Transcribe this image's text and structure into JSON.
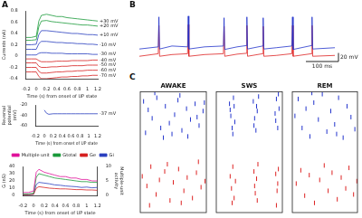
{
  "chart_data": [
    {
      "type": "line",
      "panel_label": "A",
      "xlabel": "Time (s) from onset of UP state",
      "ylabel": "Currents (nA)",
      "x": [
        -0.2,
        -0.1,
        0,
        0.05,
        0.1,
        0.2,
        0.3,
        0.4,
        0.5,
        0.6,
        0.7,
        0.8,
        0.9,
        1.0,
        1.1,
        1.2
      ],
      "xlim": [
        -0.2,
        1.2
      ],
      "xticks": [
        -0.2,
        0,
        0.2,
        0.4,
        0.6,
        0.8,
        1,
        1.2
      ],
      "ylim": [
        -0.4,
        0.8
      ],
      "yticks": [
        -0.4,
        -0.2,
        0,
        0.2,
        0.4,
        0.6,
        0.8
      ],
      "grid": false,
      "series": [
        {
          "name": "+30 mV",
          "color": "#1a9a3a",
          "values": [
            0.33,
            0.33,
            0.35,
            0.62,
            0.72,
            0.74,
            0.72,
            0.7,
            0.7,
            0.68,
            0.67,
            0.66,
            0.65,
            0.64,
            0.63,
            0.62
          ]
        },
        {
          "name": "+20 mV",
          "color": "#1a9a3a",
          "values": [
            0.28,
            0.28,
            0.29,
            0.52,
            0.62,
            0.63,
            0.61,
            0.6,
            0.59,
            0.58,
            0.57,
            0.56,
            0.55,
            0.55,
            0.54,
            0.53
          ]
        },
        {
          "name": "+10 mV",
          "color": "#2a3fbf",
          "values": [
            0.2,
            0.2,
            0.21,
            0.38,
            0.45,
            0.45,
            0.44,
            0.43,
            0.42,
            0.41,
            0.4,
            0.4,
            0.39,
            0.38,
            0.38,
            0.37
          ]
        },
        {
          "name": "-10 mV",
          "color": "#2a3fbf",
          "values": [
            0.12,
            0.12,
            0.12,
            0.22,
            0.26,
            0.26,
            0.25,
            0.24,
            0.24,
            0.23,
            0.23,
            0.22,
            0.22,
            0.21,
            0.21,
            0.2
          ]
        },
        {
          "name": "-30 mV",
          "color": "#2a3fbf",
          "values": [
            0.02,
            0.02,
            0.02,
            0.05,
            0.06,
            0.06,
            0.05,
            0.05,
            0.05,
            0.04,
            0.04,
            0.04,
            0.04,
            0.04,
            0.03,
            0.03
          ]
        },
        {
          "name": "-40 mV",
          "color": "#d62020",
          "values": [
            -0.05,
            -0.05,
            -0.05,
            -0.08,
            -0.1,
            -0.1,
            -0.1,
            -0.09,
            -0.09,
            -0.09,
            -0.08,
            -0.08,
            -0.08,
            -0.08,
            -0.07,
            -0.07
          ]
        },
        {
          "name": "-50 mV",
          "color": "#d62020",
          "values": [
            -0.12,
            -0.12,
            -0.12,
            -0.18,
            -0.2,
            -0.2,
            -0.19,
            -0.19,
            -0.18,
            -0.18,
            -0.17,
            -0.17,
            -0.17,
            -0.16,
            -0.16,
            -0.16
          ]
        },
        {
          "name": "-60 mV",
          "color": "#d62020",
          "values": [
            -0.2,
            -0.2,
            -0.2,
            -0.27,
            -0.3,
            -0.3,
            -0.29,
            -0.28,
            -0.28,
            -0.27,
            -0.27,
            -0.26,
            -0.26,
            -0.25,
            -0.25,
            -0.25
          ]
        },
        {
          "name": "-70 mV",
          "color": "#d62020",
          "values": [
            -0.28,
            -0.28,
            -0.28,
            -0.36,
            -0.4,
            -0.4,
            -0.39,
            -0.38,
            -0.37,
            -0.37,
            -0.36,
            -0.36,
            -0.35,
            -0.35,
            -0.34,
            -0.34
          ]
        }
      ]
    },
    {
      "type": "line",
      "xlabel": "Time (s) from onset of UP state",
      "ylabel": [
        "Reversal",
        "potential",
        "(mV)"
      ],
      "annotation": "-37 mV",
      "x": [
        -0.2,
        -0.1,
        0,
        0.05,
        0.1,
        0.2,
        0.3,
        0.4,
        0.5,
        0.6,
        0.7,
        0.8,
        0.9,
        1.0,
        1.1,
        1.2
      ],
      "xlim": [
        -0.2,
        1.2
      ],
      "xticks": [
        -0.2,
        0,
        0.2,
        0.4,
        0.6,
        0.8,
        1,
        1.2
      ],
      "ylim": [
        -60,
        -20
      ],
      "yticks": [
        -60,
        -40,
        -20
      ],
      "grid": false,
      "series": [
        {
          "color": "#2a3fbf",
          "values": [
            null,
            null,
            -30,
            -36,
            -38,
            -37,
            -37,
            -37,
            -37,
            -37,
            -37,
            -37,
            -37,
            -37,
            -37,
            -37
          ]
        }
      ]
    },
    {
      "type": "line",
      "xlabel": "Time (s) from onset of UP state",
      "ylabel": "G (nS)",
      "y2label": [
        "Multiple-unit",
        "activity"
      ],
      "x": [
        -0.2,
        -0.1,
        0,
        0.05,
        0.1,
        0.2,
        0.3,
        0.4,
        0.5,
        0.6,
        0.7,
        0.8,
        0.9,
        1.0,
        1.1,
        1.2
      ],
      "xlim": [
        -0.2,
        1.2
      ],
      "xticks": [
        -0.2,
        0,
        0.2,
        0.4,
        0.6,
        0.8,
        1,
        1.2
      ],
      "ylim": [
        0,
        40
      ],
      "yticks": [
        0,
        10,
        20,
        30,
        40
      ],
      "y2lim": [
        0,
        10
      ],
      "y2ticks": [
        0,
        5,
        10
      ],
      "grid": false,
      "legend": "top",
      "series": [
        {
          "name": "Multiple unit",
          "color": "#e0119a",
          "axis": "y2",
          "values": [
            1,
            1,
            1.5,
            8,
            9,
            8,
            7.5,
            7,
            6.5,
            6.5,
            6,
            6,
            5.5,
            5.5,
            5,
            5
          ]
        },
        {
          "name": "Gtotal",
          "color": "#1a9a3a",
          "values": [
            2,
            2,
            3,
            25,
            30,
            28,
            26,
            24,
            23,
            22,
            21,
            20,
            19,
            19,
            18,
            18
          ]
        },
        {
          "name": "Ge",
          "color": "#d62020",
          "values": [
            1,
            1,
            1.5,
            10,
            12,
            11,
            10,
            9.5,
            9,
            9,
            8.5,
            8,
            8,
            7.5,
            7.5,
            7
          ]
        },
        {
          "name": "Gi",
          "color": "#2a3fbf",
          "values": [
            1,
            1,
            1.5,
            15,
            18,
            17,
            16,
            14.5,
            14,
            13,
            12.5,
            12,
            11,
            11.5,
            10.5,
            11
          ]
        }
      ]
    },
    {
      "type": "line",
      "panel_label": "B",
      "tick_labels": false,
      "x": [
        0,
        58,
        60,
        62,
        100,
        148,
        150,
        152,
        200,
        258,
        260,
        262,
        300,
        328,
        330,
        332,
        378,
        380,
        382,
        420,
        468,
        470,
        472,
        528,
        530,
        532,
        600
      ],
      "xlim": [
        0,
        600
      ],
      "ylim": [
        -80,
        30
      ],
      "scale_bars": {
        "x": {
          "value": 100,
          "label": "100 ms"
        },
        "y": {
          "value": 20,
          "label": "20 mV"
        }
      },
      "series": [
        {
          "color": "#2233cc",
          "values": [
            -55,
            -50,
            20,
            -55,
            -48,
            -50,
            22,
            -55,
            -50,
            -48,
            18,
            -56,
            -50,
            -47,
            20,
            -55,
            -48,
            18,
            -55,
            -52,
            -48,
            20,
            -56,
            -47,
            20,
            -55,
            -52
          ]
        },
        {
          "color": "#dd2222",
          "values": [
            -72,
            -66,
            0,
            -72,
            -68,
            -66,
            2,
            -72,
            -68,
            -66,
            -2,
            -72,
            -67,
            -65,
            0,
            -72,
            -66,
            -2,
            -72,
            -70,
            -66,
            0,
            -72,
            -66,
            0,
            -72,
            -70
          ]
        }
      ]
    },
    {
      "type": "scatter",
      "panel_label": "C",
      "title": "AWAKE",
      "tick_labels": false,
      "marker": "line",
      "xlim": [
        0,
        100
      ],
      "ylim": [
        0,
        100
      ],
      "series": [
        {
          "color": "#2233cc",
          "x": [
            5,
            12,
            18,
            25,
            31,
            38,
            44,
            52,
            57,
            63,
            70,
            76,
            83,
            89,
            95,
            8,
            22,
            35,
            48,
            60,
            72,
            86,
            97
          ],
          "values": [
            92,
            85,
            78,
            95,
            70,
            88,
            74,
            81,
            93,
            68,
            86,
            77,
            90,
            72,
            84,
            66,
            99,
            62,
            65,
            97,
            63,
            79,
            91
          ]
        },
        {
          "color": "#dd2222",
          "x": [
            3,
            10,
            16,
            24,
            29,
            37,
            45,
            50,
            58,
            66,
            71,
            79,
            85,
            92,
            98,
            14,
            41,
            62,
            88
          ],
          "values": [
            30,
            22,
            38,
            15,
            27,
            34,
            10,
            25,
            36,
            18,
            29,
            12,
            33,
            21,
            26,
            6,
            40,
            8,
            42
          ]
        }
      ]
    },
    {
      "type": "scatter",
      "title": "SWS",
      "tick_labels": false,
      "marker": "line",
      "xlim": [
        0,
        100
      ],
      "ylim": [
        0,
        100
      ],
      "series": [
        {
          "color": "#2233cc",
          "x": [
            20,
            22,
            24,
            26,
            28,
            21,
            25,
            27,
            56,
            58,
            60,
            62,
            64,
            57,
            61,
            89,
            91,
            93,
            95,
            90,
            94
          ],
          "values": [
            90,
            80,
            70,
            95,
            75,
            85,
            65,
            88,
            92,
            78,
            68,
            84,
            96,
            72,
            88,
            82,
            94,
            70,
            86,
            76,
            98
          ]
        },
        {
          "color": "#dd2222",
          "x": [
            21,
            23,
            25,
            27,
            29,
            24,
            57,
            59,
            61,
            63,
            58,
            62,
            90,
            92,
            94,
            91,
            93
          ],
          "values": [
            30,
            20,
            38,
            12,
            26,
            8,
            34,
            16,
            28,
            40,
            22,
            10,
            32,
            18,
            36,
            6,
            24
          ]
        }
      ]
    },
    {
      "type": "scatter",
      "title": "REM",
      "tick_labels": false,
      "marker": "line",
      "xlim": [
        0,
        100
      ],
      "ylim": [
        0,
        100
      ],
      "series": [
        {
          "color": "#2233cc",
          "x": [
            4,
            9,
            15,
            21,
            27,
            33,
            40,
            46,
            53,
            59,
            65,
            71,
            78,
            84,
            90,
            96,
            30,
            68
          ],
          "values": [
            80,
            94,
            70,
            86,
            63,
            91,
            77,
            98,
            67,
            84,
            73,
            95,
            62,
            88,
            79,
            69,
            99,
            65
          ]
        },
        {
          "color": "#dd2222",
          "x": [
            6,
            13,
            19,
            26,
            34,
            42,
            49,
            55,
            61,
            69,
            75,
            82,
            87,
            94,
            99
          ],
          "values": [
            24,
            35,
            14,
            31,
            8,
            27,
            39,
            18,
            33,
            11,
            29,
            20,
            37,
            15,
            26
          ]
        }
      ]
    }
  ]
}
